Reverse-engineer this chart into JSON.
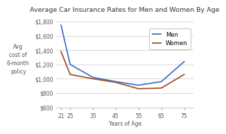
{
  "title": "Average Car Insurance Rates for Men and Women By Age",
  "xlabel": "Years of Age",
  "ylabel": "Avg\ncost of\n6-month\npolicy",
  "x": [
    21,
    25,
    35,
    45,
    55,
    65,
    75
  ],
  "men": [
    1750,
    1200,
    1020,
    960,
    910,
    960,
    1240
  ],
  "women": [
    1380,
    1060,
    1000,
    950,
    860,
    870,
    1060
  ],
  "men_color": "#4472C4",
  "women_color": "#A0522D",
  "ylim": [
    600,
    1900
  ],
  "yticks": [
    600,
    800,
    1000,
    1200,
    1400,
    1600,
    1800
  ],
  "background": "#FFFFFF",
  "grid_color": "#C8C8C8",
  "title_fontsize": 6.8,
  "axis_fontsize": 5.5,
  "tick_fontsize": 5.5,
  "legend_fontsize": 6.0,
  "linewidth": 1.3,
  "xlim": [
    19,
    79
  ]
}
